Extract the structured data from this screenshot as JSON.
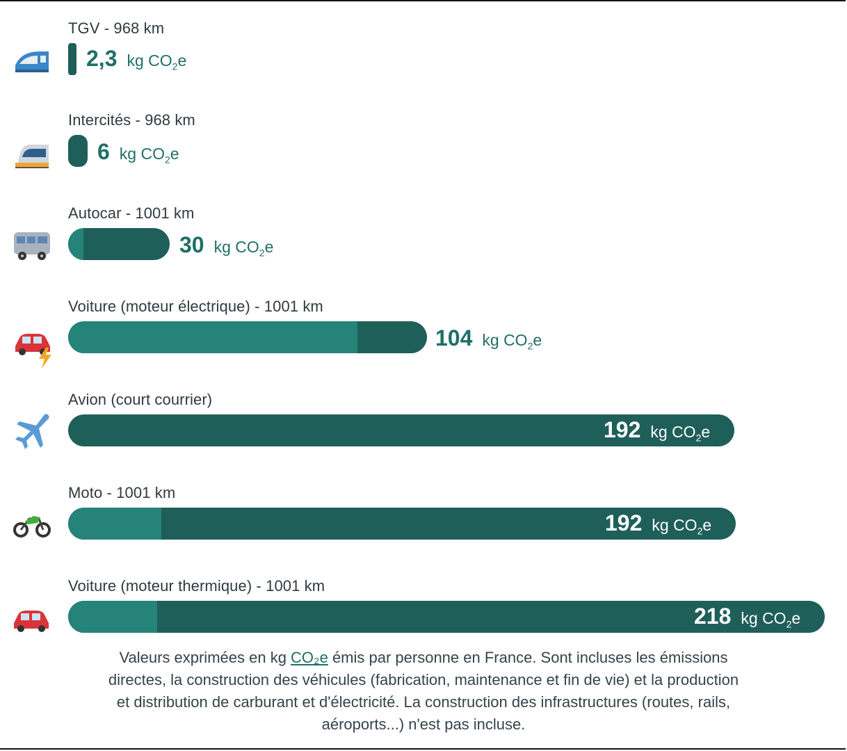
{
  "chart_data": {
    "type": "bar",
    "orientation": "horizontal",
    "unit_label": "kg CO₂e",
    "bars": [
      {
        "label": "TGV - 968 km",
        "value": "2,3",
        "numeric": 2.3,
        "icon": "high-speed-train-icon"
      },
      {
        "label": "Intercités - 968 km",
        "value": "6",
        "numeric": 6,
        "icon": "train-icon"
      },
      {
        "label": "Autocar - 1001 km",
        "value": "30",
        "numeric": 30,
        "icon": "bus-icon"
      },
      {
        "label": "Voiture (moteur électrique) - 1001 km",
        "value": "104",
        "numeric": 104,
        "icon": "electric-car-icon"
      },
      {
        "label": "Avion (court courrier)",
        "value": "192",
        "numeric": 192,
        "icon": "airplane-icon"
      },
      {
        "label": "Moto - 1001 km",
        "value": "192",
        "numeric": 192,
        "icon": "motorcycle-icon"
      },
      {
        "label": "Voiture (moteur thermique) - 1001 km",
        "value": "218",
        "numeric": 218,
        "icon": "car-icon"
      }
    ],
    "colors": {
      "dark": "#1f5f59",
      "light": "#25837a",
      "text": "#1f6f66"
    }
  },
  "footnote": {
    "before": "Valeurs exprimées en kg ",
    "link": "CO₂e",
    "after": " émis par personne en France. Sont incluses les émissions directes, la construction des véhicules (fabrication, maintenance et fin de vie) et la production et distribution de carburant et d'électricité. La construction des infrastructures (routes, rails, aéroports...) n'est pas incluse."
  }
}
